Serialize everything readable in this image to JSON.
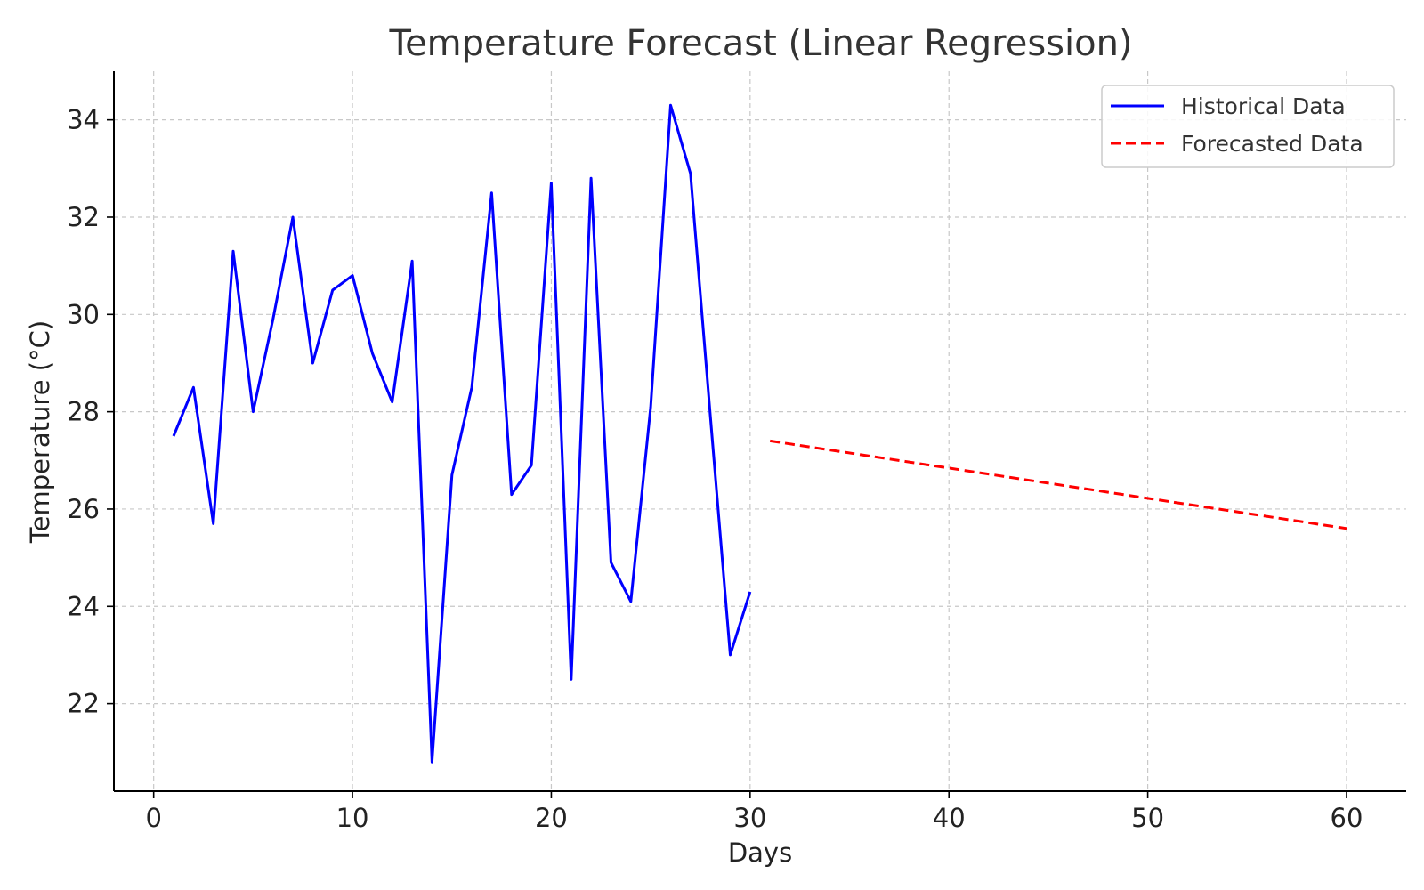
{
  "chart_data": {
    "type": "line",
    "title": "Temperature Forecast (Linear Regression)",
    "xlabel": "Days",
    "ylabel": "Temperature (°C)",
    "xlim": [
      -2,
      63
    ],
    "ylim": [
      20.2,
      35.0
    ],
    "xticks": [
      0,
      10,
      20,
      30,
      40,
      50,
      60
    ],
    "yticks": [
      22,
      24,
      26,
      28,
      30,
      32,
      34
    ],
    "grid": true,
    "legend_position": "top-right",
    "series": [
      {
        "name": "Historical Data",
        "color": "#0000ff",
        "style": "solid",
        "x": [
          1,
          2,
          3,
          4,
          5,
          6,
          7,
          8,
          9,
          10,
          11,
          12,
          13,
          14,
          15,
          16,
          17,
          18,
          19,
          20,
          21,
          22,
          23,
          24,
          25,
          26,
          27,
          28,
          29,
          30
        ],
        "y": [
          27.5,
          28.5,
          25.7,
          31.3,
          28.0,
          29.9,
          32.0,
          29.0,
          30.5,
          30.8,
          29.2,
          28.2,
          31.1,
          20.8,
          26.7,
          28.5,
          32.5,
          26.3,
          26.9,
          32.7,
          22.5,
          32.8,
          24.9,
          24.1,
          28.1,
          34.3,
          32.9,
          27.9,
          23.0,
          24.3
        ]
      },
      {
        "name": "Forecasted Data",
        "color": "#ff0000",
        "style": "dashed",
        "x": [
          31,
          60
        ],
        "y": [
          27.4,
          25.6
        ]
      }
    ]
  }
}
